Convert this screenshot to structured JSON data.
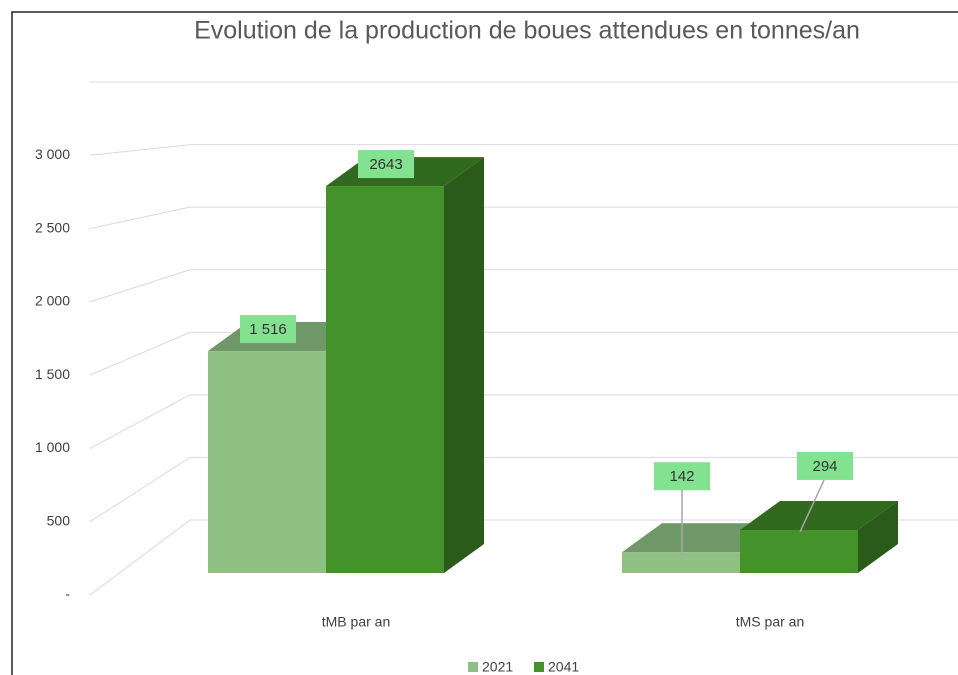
{
  "chart_data": {
    "type": "bar3d",
    "title": "Evolution de la production de boues attendues en tonnes/an",
    "categories": [
      "tMB par an",
      "tMS par an"
    ],
    "series": [
      {
        "name": "2021",
        "color": "#8fc185",
        "values": [
          1516,
          142
        ],
        "value_labels": [
          "1 516",
          "142"
        ]
      },
      {
        "name": "2041",
        "color": "#44922a",
        "values": [
          2643,
          294
        ],
        "value_labels": [
          "2643",
          "294"
        ]
      }
    ],
    "ylim": [
      0,
      3500
    ],
    "yticks": [
      {
        "value": 0,
        "label": "-"
      },
      500,
      {
        "value": 1000,
        "label": "1 000"
      },
      {
        "value": 1500,
        "label": "1 500"
      },
      {
        "value": 2000,
        "label": "2 000"
      },
      {
        "value": 2500,
        "label": "2 500"
      },
      {
        "value": 3000,
        "label": "3 000"
      }
    ],
    "grid": true,
    "legend": "bottom"
  }
}
